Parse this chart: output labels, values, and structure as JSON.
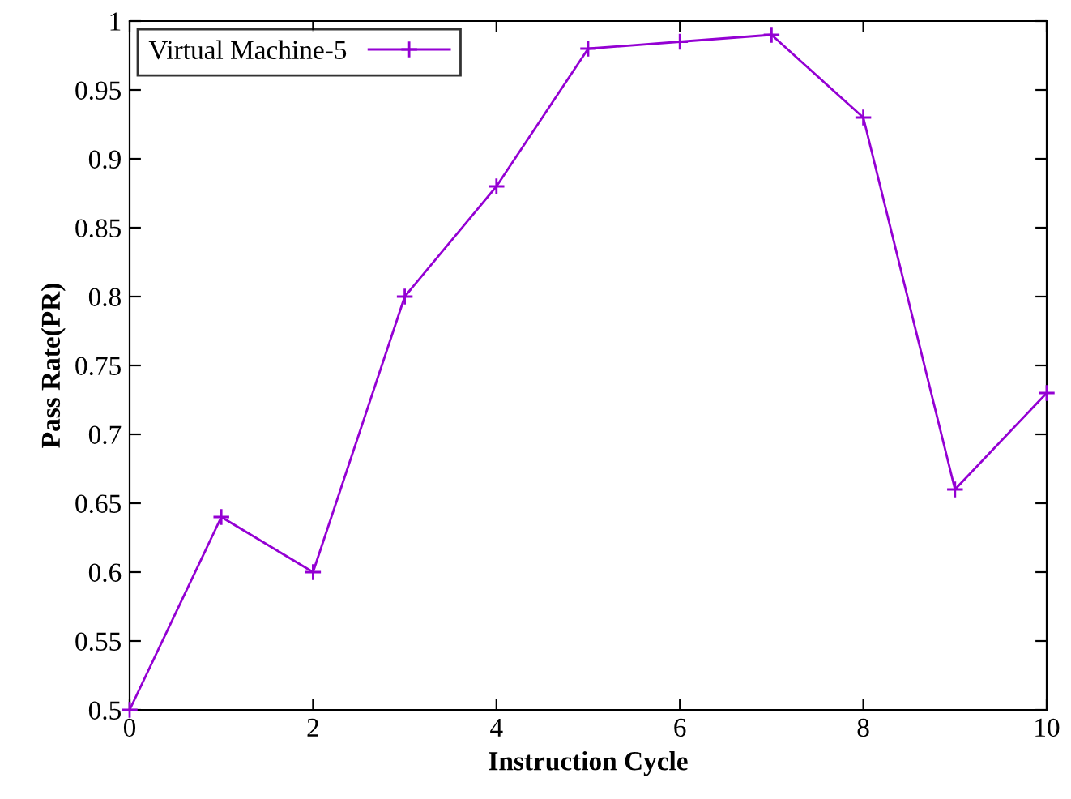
{
  "chart_data": {
    "type": "line",
    "xlabel": "Instruction Cycle",
    "ylabel": "Pass Rate(PR)",
    "x": [
      0,
      1,
      2,
      3,
      4,
      5,
      6,
      7,
      8,
      9,
      10
    ],
    "series": [
      {
        "name": "Virtual Machine-5",
        "color": "#9400d3",
        "values": [
          0.5,
          0.64,
          0.6,
          0.8,
          0.88,
          0.98,
          0.985,
          0.99,
          0.93,
          0.66,
          0.73
        ]
      }
    ],
    "xlim": [
      0,
      10
    ],
    "xticks": [
      0,
      2,
      4,
      6,
      8,
      10
    ],
    "ylim": [
      0.5,
      1
    ],
    "yticks": [
      0.5,
      0.55,
      0.6,
      0.65,
      0.7,
      0.75,
      0.8,
      0.85,
      0.9,
      0.95,
      1
    ],
    "legend": "top left",
    "marker": "cross",
    "line_style": "solid",
    "grid": false
  }
}
